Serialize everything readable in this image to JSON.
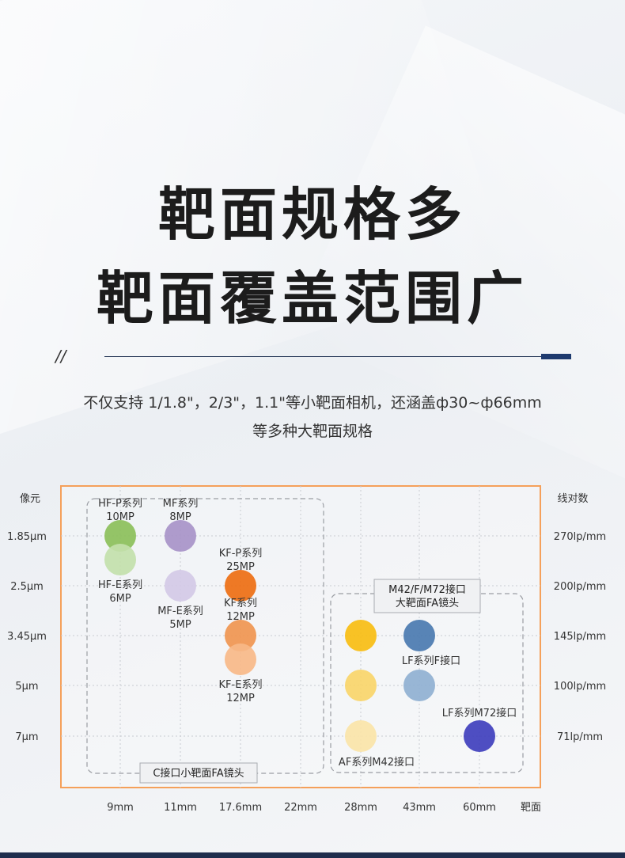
{
  "headline": {
    "line1": "靶面规格多",
    "line2": "靶面覆盖范围广"
  },
  "divider_mark": "//",
  "description": {
    "line1": "不仅支持 1/1.8\"，2/3\"，1.1\"等小靶面相机，还涵盖ф30~ф66mm",
    "line2": "等多种大靶面规格"
  },
  "colors": {
    "frame": "#f5a05a",
    "accent": "#1e3a6e"
  },
  "chart_data": {
    "type": "scatter",
    "left_axis_title": "像元",
    "right_axis_title": "线对数",
    "x_axis_title": "靶面",
    "x_categories": [
      "9mm",
      "11mm",
      "17.6mm",
      "22mm",
      "28mm",
      "43mm",
      "60mm"
    ],
    "y_left_categories": [
      "1.85μm",
      "2.5μm",
      "3.45μm",
      "5μm",
      "7μm"
    ],
    "y_right_categories": [
      "270lp/mm",
      "200lp/mm",
      "145lp/mm",
      "100lp/mm",
      "71lp/mm"
    ],
    "groups": [
      {
        "label": "C接口小靶面FA镜头"
      },
      {
        "label": "M42/F/M72接口\n大靶面FA镜头"
      }
    ],
    "points": [
      {
        "x": "9mm",
        "y": "1.85μm",
        "label": "HF-P系列\n10MP",
        "label_pos": "above",
        "color": "#8cbf5a"
      },
      {
        "x": "9mm",
        "y": "1.85μm",
        "label": "HF-E系列\n6MP",
        "label_pos": "below",
        "color": "#c3dfab"
      },
      {
        "x": "11mm",
        "y": "1.85μm",
        "label": "MF系列\n8MP",
        "label_pos": "above",
        "color": "#a893c8"
      },
      {
        "x": "11mm",
        "y": "2.5μm",
        "label": "MF-E系列\n5MP",
        "label_pos": "below",
        "color": "#d4c9e6"
      },
      {
        "x": "17.6mm",
        "y": "2.5μm",
        "label": "KF-P系列\n25MP",
        "label_pos": "above",
        "color": "#ee6e12"
      },
      {
        "x": "17.6mm",
        "y": "3.45μm",
        "label": "KF系列\n12MP",
        "label_pos": "above",
        "color": "#f09550"
      },
      {
        "x": "17.6mm",
        "y": "3.45μm",
        "label": "KF-E系列\n12MP",
        "label_pos": "below",
        "color": "#f7b888"
      },
      {
        "x": "28mm",
        "y": "3.45μm",
        "label": "",
        "label_pos": "none",
        "color": "#f7bd12"
      },
      {
        "x": "28mm",
        "y": "5μm",
        "label": "",
        "label_pos": "none",
        "color": "#f8d56a"
      },
      {
        "x": "28mm",
        "y": "7μm",
        "label": "AF系列M42接口",
        "label_pos": "below",
        "color": "#fae4a8"
      },
      {
        "x": "43mm",
        "y": "3.45μm",
        "label": "LF系列F接口",
        "label_pos": "below",
        "color": "#4a79b0"
      },
      {
        "x": "43mm",
        "y": "5μm",
        "label": "",
        "label_pos": "none",
        "color": "#8fb0d1"
      },
      {
        "x": "60mm",
        "y": "7μm",
        "label": "LF系列M72接口",
        "label_pos": "above",
        "color": "#3f3fbd"
      }
    ]
  }
}
